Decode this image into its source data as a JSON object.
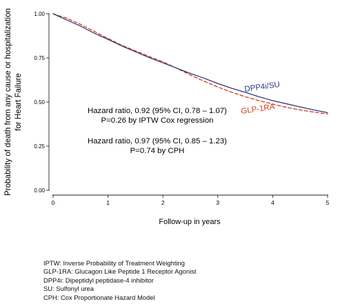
{
  "chart_data": {
    "type": "line",
    "title": "",
    "xlabel": "Follow-up in years",
    "ylabel_lines": [
      "Probability of death from any cause or hospitalization",
      "for Heart Failure"
    ],
    "xlim": [
      0,
      5
    ],
    "ylim": [
      0,
      1
    ],
    "x_ticks": [
      0,
      1,
      2,
      3,
      4,
      5
    ],
    "x_tick_labels": [
      "0",
      "1",
      "2",
      "3",
      "4",
      "5"
    ],
    "y_ticks": [
      0,
      0.25,
      0.5,
      0.75,
      1
    ],
    "y_tick_labels": [
      "0.00",
      "0.25",
      "0.50",
      "0.75",
      "1.00"
    ],
    "grid": false,
    "series": [
      {
        "name": "DPP4i/SU",
        "color": "#2b3a7a",
        "dash": "solid",
        "x": [
          0,
          0.25,
          0.5,
          0.75,
          1,
          1.25,
          1.5,
          1.75,
          2,
          2.25,
          2.5,
          2.75,
          3,
          3.25,
          3.5,
          3.75,
          4,
          4.25,
          4.5,
          4.75,
          5
        ],
        "y": [
          1.0,
          0.965,
          0.93,
          0.89,
          0.855,
          0.818,
          0.785,
          0.752,
          0.722,
          0.692,
          0.662,
          0.635,
          0.605,
          0.578,
          0.555,
          0.53,
          0.508,
          0.49,
          0.472,
          0.455,
          0.44
        ]
      },
      {
        "name": "GLP-1RA",
        "color": "#d9391c",
        "dash": "dashed",
        "x": [
          0,
          0.25,
          0.5,
          0.75,
          1,
          1.25,
          1.5,
          1.75,
          2,
          2.25,
          2.5,
          2.75,
          3,
          3.25,
          3.5,
          3.75,
          4,
          4.25,
          4.5,
          4.75,
          5
        ],
        "y": [
          1.0,
          0.975,
          0.94,
          0.9,
          0.86,
          0.822,
          0.79,
          0.758,
          0.728,
          0.692,
          0.653,
          0.618,
          0.585,
          0.556,
          0.53,
          0.508,
          0.488,
          0.47,
          0.455,
          0.443,
          0.432
        ]
      }
    ],
    "annotations": [
      {
        "lines": [
          "Hazard ratio, 0.92 (95% CI, 0.78 – 1.07)",
          "P=0.26 by IPTW Cox regression"
        ]
      },
      {
        "lines": [
          "Hazard ratio, 0.97 (95% CI, 0.85 – 1.23)",
          "P=0.74 by CPH"
        ]
      }
    ]
  },
  "footnotes": [
    "IPTW: Inverse Probability of Treatment  Weighting",
    "GLP-1RA: Glucagon Like Peptide 1 Receptor Agonist",
    "DPP4i: Dipeptidyl peptidase-4 inhibitor",
    "SU: Sulfonyl urea",
    "CPH: Cox Proportionate Hazard Model"
  ]
}
